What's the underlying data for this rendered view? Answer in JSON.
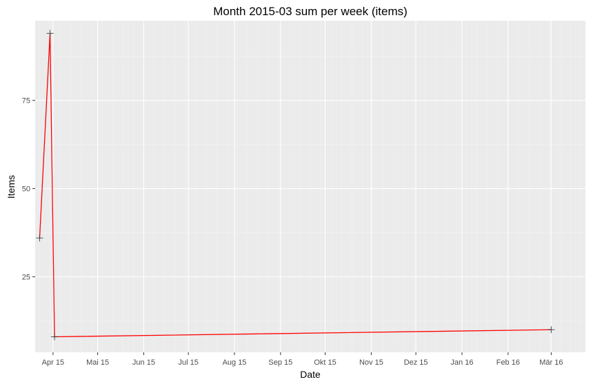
{
  "chart_data": {
    "type": "line",
    "title": "Month 2015-03 sum per week (items)",
    "xlabel": "Date",
    "ylabel": "Items",
    "x_axis_kind": "date",
    "xlim": [
      "2015-03-20",
      "2016-03-24"
    ],
    "ylim": [
      3.6,
      97.6
    ],
    "x_ticks": [
      {
        "date": "2015-04-01",
        "label": "Apr 15"
      },
      {
        "date": "2015-05-01",
        "label": "Mai 15"
      },
      {
        "date": "2015-06-01",
        "label": "Jun 15"
      },
      {
        "date": "2015-07-01",
        "label": "Jul 15"
      },
      {
        "date": "2015-08-01",
        "label": "Aug 15"
      },
      {
        "date": "2015-09-01",
        "label": "Sep 15"
      },
      {
        "date": "2015-10-01",
        "label": "Okt 15"
      },
      {
        "date": "2015-11-01",
        "label": "Nov 15"
      },
      {
        "date": "2015-12-01",
        "label": "Dez 15"
      },
      {
        "date": "2016-01-01",
        "label": "Jan 16"
      },
      {
        "date": "2016-02-01",
        "label": "Feb 16"
      },
      {
        "date": "2016-03-01",
        "label": "Mär 16"
      }
    ],
    "y_ticks": [
      25,
      50,
      75
    ],
    "grid": true,
    "series": [
      {
        "color": "#ff0000",
        "marker": "plus",
        "marker_color": "#333333",
        "points": [
          {
            "x": "2015-03-23",
            "y": 36
          },
          {
            "x": "2015-03-30",
            "y": 94
          },
          {
            "x": "2015-04-02",
            "y": 8
          },
          {
            "x": "2016-03-01",
            "y": 10
          }
        ]
      }
    ]
  }
}
